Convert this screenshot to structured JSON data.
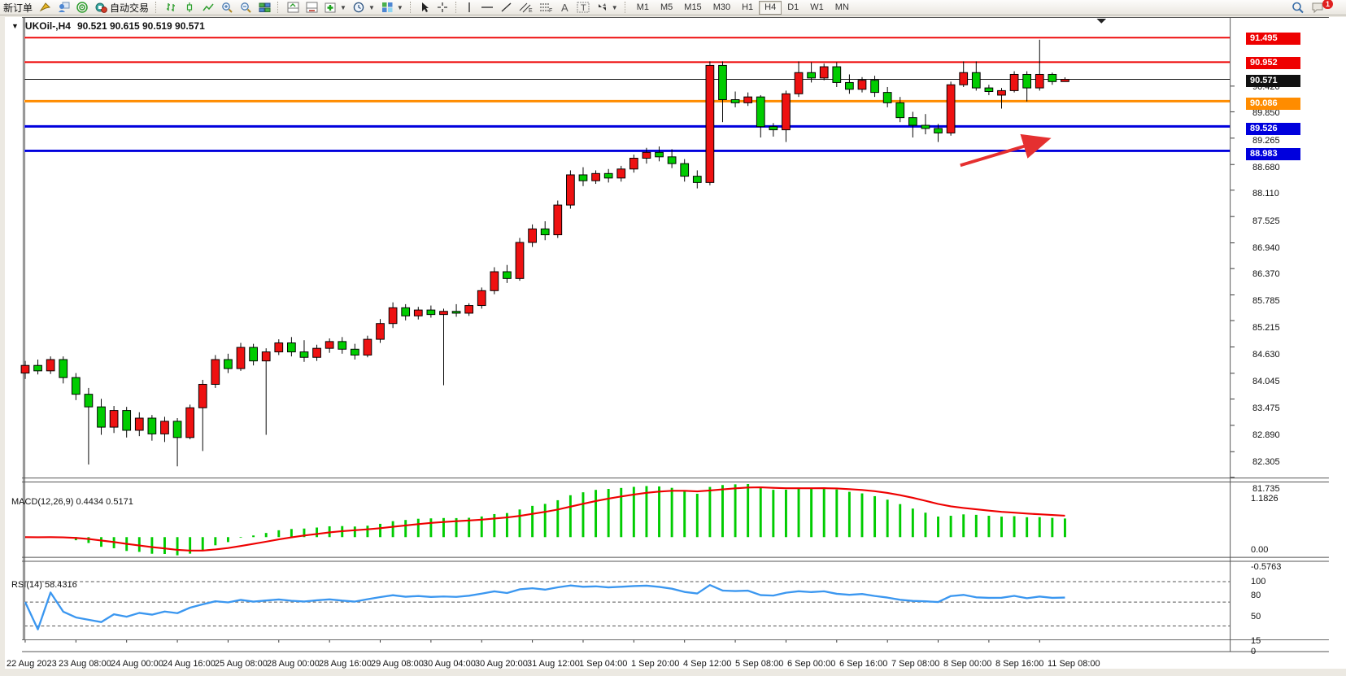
{
  "toolbar": {
    "new_order": "新订单",
    "autotrading": "自动交易",
    "timeframes": [
      "M1",
      "M5",
      "M15",
      "M30",
      "H1",
      "H4",
      "D1",
      "W1",
      "MN"
    ],
    "active_timeframe": "H4",
    "notification_badge": "1"
  },
  "chart": {
    "caption_symbol": "UKOil-,H4",
    "caption_ohlc": "90.521 90.615 90.519 90.571"
  },
  "price_axis": {
    "ticks": [
      90.42,
      89.85,
      89.265,
      88.68,
      88.11,
      87.525,
      86.94,
      86.37,
      85.785,
      85.215,
      84.63,
      84.045,
      83.475,
      82.89,
      82.305,
      81.735
    ]
  },
  "levels": [
    {
      "label": "91.495",
      "price": 91.495,
      "color": "#ee0000",
      "width": 2
    },
    {
      "label": "90.952",
      "price": 90.952,
      "color": "#ee0000",
      "width": 2
    },
    {
      "label": "90.571",
      "price": 90.571,
      "color": "#111111",
      "width": 1
    },
    {
      "label": "90.086",
      "price": 90.086,
      "color": "#ff8c00",
      "width": 3
    },
    {
      "label": "89.526",
      "price": 89.526,
      "color": "#0000dd",
      "width": 3
    },
    {
      "label": "88.983",
      "price": 88.983,
      "color": "#0000dd",
      "width": 3
    }
  ],
  "macd": {
    "label": "MACD(12,26,9) 0.4434 0.5171",
    "axis_max": "1.1826",
    "axis_zero": "0.00",
    "axis_min": "-0.5763",
    "histogram_color": "#00cc00",
    "signal_color": "#ee0000"
  },
  "rsi": {
    "label": "RSI(14) 58.4316",
    "axis": [
      "100",
      "80",
      "50",
      "15",
      "0"
    ],
    "levels": [
      80,
      50,
      15
    ],
    "line_color": "#3b97f0"
  },
  "time_axis": [
    "22 Aug 2023",
    "23 Aug 08:00",
    "24 Aug 00:00",
    "24 Aug 16:00",
    "25 Aug 08:00",
    "28 Aug 00:00",
    "28 Aug 16:00",
    "29 Aug 08:00",
    "30 Aug 04:00",
    "30 Aug 20:00",
    "31 Aug 12:00",
    "1 Sep 04:00",
    "1 Sep 20:00",
    "4 Sep 12:00",
    "5 Sep 08:00",
    "6 Sep 00:00",
    "6 Sep 16:00",
    "7 Sep 08:00",
    "8 Sep 00:00",
    "8 Sep 16:00",
    "11 Sep 08:00"
  ],
  "chart_data": {
    "type": "candlestick",
    "symbol": "UKOil-",
    "timeframe": "H4",
    "up_color": "#ee1111",
    "down_color": "#00cc00",
    "current_bar": {
      "open": 90.521,
      "high": 90.615,
      "low": 90.519,
      "close": 90.571
    },
    "candles": [
      [
        84.05,
        84.32,
        83.92,
        84.22
      ],
      [
        84.22,
        84.35,
        84.02,
        84.1
      ],
      [
        84.1,
        84.42,
        84.03,
        84.35
      ],
      [
        84.35,
        84.42,
        83.82,
        83.95
      ],
      [
        83.95,
        84.05,
        83.45,
        83.58
      ],
      [
        83.58,
        83.72,
        82.02,
        83.3
      ],
      [
        83.3,
        83.48,
        82.68,
        82.85
      ],
      [
        82.85,
        83.32,
        82.72,
        83.22
      ],
      [
        83.22,
        83.3,
        82.62,
        82.78
      ],
      [
        82.78,
        83.18,
        82.65,
        83.05
      ],
      [
        83.05,
        83.12,
        82.55,
        82.7
      ],
      [
        82.7,
        83.08,
        82.52,
        82.98
      ],
      [
        82.98,
        83.05,
        81.98,
        82.62
      ],
      [
        82.62,
        83.35,
        82.58,
        83.28
      ],
      [
        83.28,
        83.9,
        82.32,
        83.8
      ],
      [
        83.8,
        84.45,
        83.72,
        84.35
      ],
      [
        84.35,
        84.48,
        84.05,
        84.15
      ],
      [
        84.15,
        84.72,
        84.1,
        84.62
      ],
      [
        84.62,
        84.7,
        84.22,
        84.32
      ],
      [
        84.32,
        84.6,
        82.68,
        84.52
      ],
      [
        84.52,
        84.8,
        84.45,
        84.72
      ],
      [
        84.72,
        84.85,
        84.42,
        84.52
      ],
      [
        84.52,
        84.78,
        84.3,
        84.4
      ],
      [
        84.4,
        84.68,
        84.32,
        84.6
      ],
      [
        84.6,
        84.82,
        84.5,
        84.75
      ],
      [
        84.75,
        84.85,
        84.48,
        84.58
      ],
      [
        84.58,
        84.7,
        84.35,
        84.45
      ],
      [
        84.45,
        84.88,
        84.4,
        84.8
      ],
      [
        84.8,
        85.25,
        84.72,
        85.15
      ],
      [
        85.15,
        85.62,
        85.05,
        85.5
      ],
      [
        85.5,
        85.58,
        85.22,
        85.32
      ],
      [
        85.32,
        85.52,
        85.24,
        85.45
      ],
      [
        85.45,
        85.55,
        85.28,
        85.35
      ],
      [
        85.35,
        85.48,
        83.78,
        85.42
      ],
      [
        85.42,
        85.58,
        85.3,
        85.38
      ],
      [
        85.38,
        85.6,
        85.32,
        85.55
      ],
      [
        85.55,
        85.95,
        85.48,
        85.88
      ],
      [
        85.88,
        86.4,
        85.8,
        86.3
      ],
      [
        86.3,
        86.45,
        86.05,
        86.15
      ],
      [
        86.15,
        87.05,
        86.1,
        86.95
      ],
      [
        86.95,
        87.35,
        86.85,
        87.25
      ],
      [
        87.25,
        87.42,
        87.0,
        87.12
      ],
      [
        87.12,
        87.88,
        87.05,
        87.78
      ],
      [
        87.78,
        88.55,
        87.7,
        88.45
      ],
      [
        88.45,
        88.62,
        88.2,
        88.32
      ],
      [
        88.32,
        88.55,
        88.25,
        88.48
      ],
      [
        88.48,
        88.58,
        88.28,
        88.38
      ],
      [
        88.38,
        88.65,
        88.3,
        88.58
      ],
      [
        88.58,
        88.9,
        88.5,
        88.82
      ],
      [
        88.82,
        89.05,
        88.7,
        88.95
      ],
      [
        88.95,
        89.08,
        88.75,
        88.85
      ],
      [
        88.85,
        89.02,
        88.6,
        88.7
      ],
      [
        88.7,
        88.8,
        88.3,
        88.42
      ],
      [
        88.42,
        88.55,
        88.15,
        88.28
      ],
      [
        88.28,
        90.97,
        88.22,
        90.88
      ],
      [
        90.88,
        90.97,
        89.62,
        90.12
      ],
      [
        90.12,
        90.3,
        89.95,
        90.05
      ],
      [
        90.05,
        90.28,
        89.98,
        90.18
      ],
      [
        90.18,
        90.22,
        89.28,
        89.52
      ],
      [
        89.52,
        89.6,
        89.3,
        89.45
      ],
      [
        89.45,
        90.32,
        89.18,
        90.25
      ],
      [
        90.25,
        90.97,
        90.18,
        90.72
      ],
      [
        90.72,
        90.95,
        90.5,
        90.6
      ],
      [
        90.6,
        90.92,
        90.55,
        90.85
      ],
      [
        90.85,
        90.95,
        90.4,
        90.5
      ],
      [
        90.5,
        90.68,
        90.25,
        90.35
      ],
      [
        90.35,
        90.62,
        90.28,
        90.55
      ],
      [
        90.55,
        90.65,
        90.18,
        90.28
      ],
      [
        90.28,
        90.4,
        89.95,
        90.05
      ],
      [
        90.05,
        90.18,
        89.62,
        89.72
      ],
      [
        89.72,
        89.85,
        89.28,
        89.55
      ],
      [
        89.55,
        89.8,
        89.35,
        89.48
      ],
      [
        89.48,
        89.58,
        89.18,
        89.38
      ],
      [
        89.38,
        90.52,
        89.32,
        90.45
      ],
      [
        90.45,
        90.97,
        90.4,
        90.72
      ],
      [
        90.72,
        90.97,
        90.32,
        90.38
      ],
      [
        90.38,
        90.45,
        90.22,
        90.3
      ],
      [
        90.22,
        90.38,
        89.92,
        90.32
      ],
      [
        90.32,
        90.75,
        90.28,
        90.68
      ],
      [
        90.68,
        90.75,
        90.08,
        90.38
      ],
      [
        90.38,
        91.45,
        90.32,
        90.68
      ],
      [
        90.68,
        90.72,
        90.45,
        90.52
      ],
      [
        90.521,
        90.615,
        90.519,
        90.571
      ]
    ]
  },
  "annotation_arrow": {
    "from": [
      1190,
      208
    ],
    "to": [
      1297,
      176
    ],
    "color": "#e53030"
  }
}
